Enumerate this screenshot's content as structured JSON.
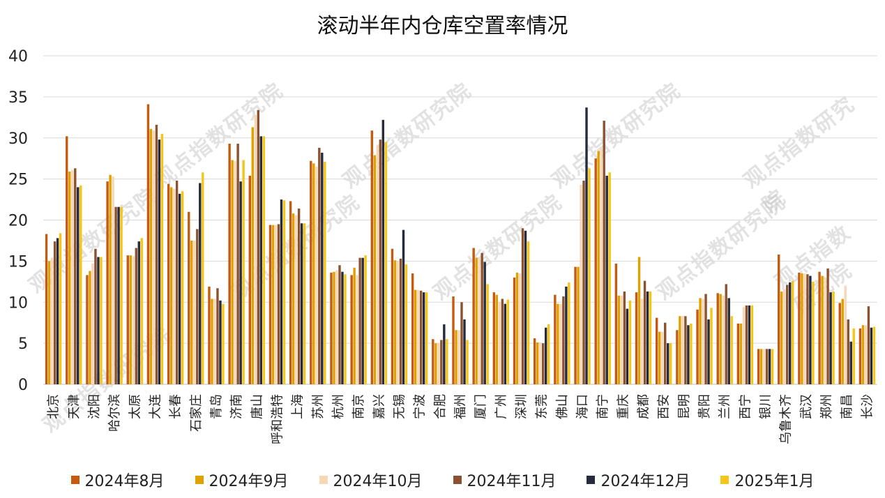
{
  "title": "滚动半年内仓库空置率情况",
  "watermark": "观点指数研究院",
  "chart_data": {
    "type": "bar",
    "title": "滚动半年内仓库空置率情况",
    "xlabel": "",
    "ylabel": "",
    "ylim": [
      0,
      40
    ],
    "yticks": [
      0,
      5,
      10,
      15,
      20,
      25,
      30,
      35,
      40
    ],
    "grid": true,
    "legend_position": "bottom",
    "categories": [
      "北京",
      "天津",
      "沈阳",
      "哈尔滨",
      "太原",
      "大连",
      "长春",
      "石家庄",
      "青岛",
      "济南",
      "唐山",
      "呼和浩特",
      "上海",
      "苏州",
      "杭州",
      "南京",
      "嘉兴",
      "无锡",
      "宁波",
      "合肥",
      "福州",
      "厦门",
      "广州",
      "深圳",
      "东莞",
      "佛山",
      "海口",
      "南宁",
      "重庆",
      "成都",
      "西安",
      "昆明",
      "贵阳",
      "兰州",
      "西宁",
      "银川",
      "乌鲁木齐",
      "武汉",
      "郑州",
      "南昌",
      "长沙"
    ],
    "series": [
      {
        "name": "2024年8月",
        "color": "#C55A11",
        "values": [
          18.3,
          30.2,
          13.3,
          24.7,
          15.7,
          34.1,
          24.4,
          21.0,
          11.9,
          29.3,
          25.4,
          19.4,
          22.3,
          27.2,
          13.6,
          13.3,
          30.9,
          16.5,
          13.5,
          5.5,
          10.7,
          16.6,
          11.2,
          13.0,
          5.6,
          10.9,
          14.3,
          27.5,
          14.7,
          11.2,
          8.1,
          6.6,
          9.1,
          11.1,
          7.4,
          4.3,
          15.8,
          13.6,
          13.7,
          9.9,
          6.8
        ]
      },
      {
        "name": "2024年9月",
        "color": "#E0A100",
        "values": [
          15.0,
          25.9,
          13.8,
          25.5,
          15.7,
          31.1,
          24.0,
          17.5,
          10.4,
          27.3,
          31.3,
          19.4,
          20.8,
          26.9,
          13.7,
          14.2,
          27.9,
          15.1,
          11.5,
          5.0,
          6.6,
          15.4,
          10.9,
          13.6,
          5.1,
          9.8,
          14.3,
          28.4,
          10.8,
          15.5,
          6.4,
          8.3,
          10.5,
          11.0,
          7.4,
          4.3,
          11.3,
          13.5,
          13.2,
          10.4,
          7.2
        ]
      },
      {
        "name": "2024年10月",
        "color": "#F6D7B8",
        "values": [
          15.4,
          26.1,
          14.7,
          25.3,
          15.6,
          30.9,
          23.8,
          17.5,
          10.4,
          27.2,
          32.8,
          19.4,
          20.6,
          26.5,
          13.9,
          13.3,
          29.1,
          15.0,
          11.5,
          5.0,
          6.6,
          15.4,
          10.0,
          13.5,
          5.1,
          9.8,
          24.3,
          28.8,
          10.8,
          10.4,
          6.4,
          8.3,
          10.4,
          10.8,
          9.4,
          4.3,
          11.6,
          13.5,
          13.0,
          12.0,
          7.2
        ]
      },
      {
        "name": "2024年11月",
        "color": "#8B5230",
        "values": [
          17.4,
          26.3,
          16.5,
          21.6,
          16.6,
          31.6,
          24.8,
          18.9,
          11.7,
          29.3,
          33.4,
          19.5,
          21.4,
          28.8,
          14.5,
          15.4,
          29.8,
          15.3,
          11.4,
          5.4,
          10.0,
          16.0,
          10.4,
          19.0,
          5.0,
          10.7,
          24.8,
          32.1,
          11.3,
          12.6,
          7.5,
          8.3,
          11.0,
          12.2,
          9.6,
          4.3,
          12.1,
          13.4,
          14.1,
          7.9,
          9.5
        ]
      },
      {
        "name": "2024年12月",
        "color": "#262A3D",
        "values": [
          17.8,
          24.0,
          15.5,
          21.6,
          17.4,
          29.8,
          23.2,
          24.5,
          10.2,
          24.7,
          30.2,
          22.5,
          19.6,
          28.2,
          13.7,
          15.4,
          32.2,
          18.8,
          11.2,
          7.3,
          7.9,
          14.9,
          9.8,
          18.7,
          6.9,
          11.9,
          33.7,
          25.4,
          9.2,
          11.3,
          5.0,
          7.2,
          7.9,
          10.5,
          9.6,
          4.3,
          12.4,
          13.2,
          11.2,
          5.2,
          6.9
        ]
      },
      {
        "name": "2025年1月",
        "color": "#F5C518",
        "values": [
          18.4,
          24.2,
          15.5,
          21.6,
          17.8,
          30.5,
          23.5,
          25.8,
          9.8,
          27.3,
          30.2,
          22.4,
          19.6,
          27.1,
          13.4,
          15.7,
          29.5,
          14.6,
          11.2,
          5.5,
          5.4,
          12.2,
          10.3,
          17.4,
          7.3,
          12.4,
          26.3,
          25.8,
          10.2,
          11.3,
          5.0,
          7.4,
          9.3,
          8.3,
          9.6,
          4.3,
          12.6,
          12.5,
          11.3,
          6.8,
          7.0
        ]
      }
    ]
  }
}
